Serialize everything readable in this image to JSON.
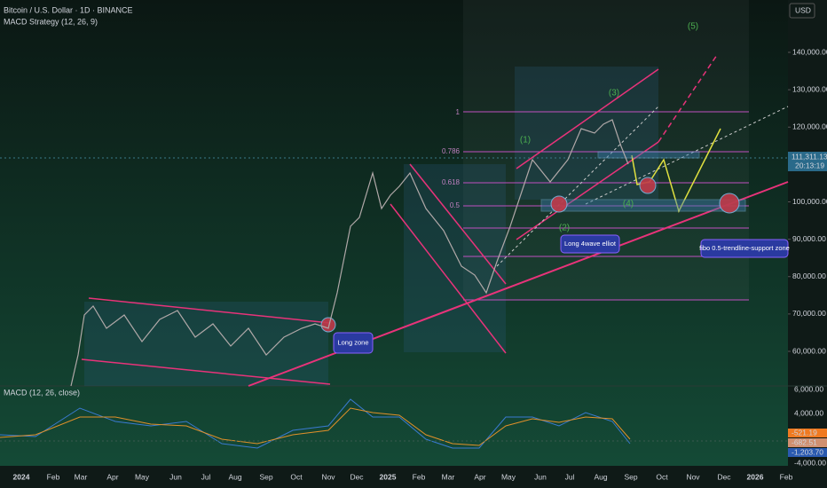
{
  "header": {
    "title": "Bitcoin / U.S. Dollar · 1D · BINANCE",
    "indicator": "MACD Strategy (12, 26, 9)"
  },
  "price_axis": {
    "currency": "USD",
    "ticks": [
      {
        "value": 140000,
        "label": "140,000.00"
      },
      {
        "value": 130000,
        "label": "130,000.00"
      },
      {
        "value": 120000,
        "label": "120,000.00"
      },
      {
        "value": 100000,
        "label": "100,000.00"
      },
      {
        "value": 90000,
        "label": "90,000.00"
      },
      {
        "value": 80000,
        "label": "80,000.00"
      },
      {
        "value": 70000,
        "label": "70,000.00"
      },
      {
        "value": 60000,
        "label": "60,000.00"
      }
    ],
    "last_price": "111,311.13",
    "countdown": "20:13:19"
  },
  "macd_pane": {
    "title": "MACD (12, 26, close)",
    "ticks": [
      "6,000.00",
      "4,000.00",
      "-4,000.00"
    ],
    "values": [
      "-521.19",
      "-682.51",
      "-1,203.70"
    ]
  },
  "time_axis": [
    "2024",
    "Feb",
    "Mar",
    "Apr",
    "May",
    "Jun",
    "Jul",
    "Aug",
    "Sep",
    "Oct",
    "Nov",
    "Dec",
    "2025",
    "Feb",
    "Mar",
    "Apr",
    "May",
    "Jun",
    "Jul",
    "Aug",
    "Sep",
    "Oct",
    "Nov",
    "Dec",
    "2026",
    "Feb"
  ],
  "waves": [
    "(1)",
    "(2)",
    "(3)",
    "(4)",
    "(5)"
  ],
  "fib_levels": [
    "1",
    "0.786",
    "0.618",
    "0.5"
  ],
  "annotations": [
    "Long zone",
    "Long 4wave elliot",
    "fibo 0.5-trendline-support zone"
  ]
}
